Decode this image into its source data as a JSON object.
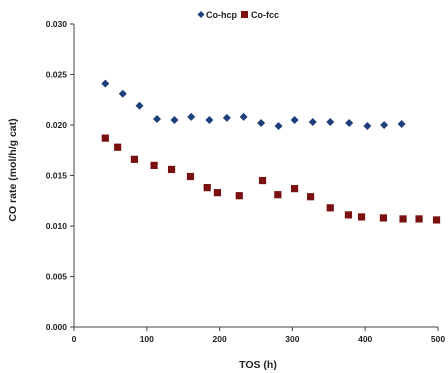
{
  "chart_data": {
    "type": "scatter",
    "title": "",
    "xlabel": "TOS (h)",
    "ylabel": "CO rate (mol/h/g cat)",
    "xlim": [
      0,
      500
    ],
    "ylim": [
      0.0,
      0.03
    ],
    "x_ticks": [
      0,
      100,
      200,
      300,
      400,
      500
    ],
    "x_tick_labels": [
      "0",
      "100",
      "200",
      "300",
      "400",
      "500"
    ],
    "y_ticks": [
      0.0,
      0.005,
      0.01,
      0.015,
      0.02,
      0.025,
      0.03
    ],
    "y_tick_labels": [
      "0.000",
      "0.005",
      "0.010",
      "0.015",
      "0.020",
      "0.025",
      "0.030"
    ],
    "grid": false,
    "legend_position": "top-center",
    "series": [
      {
        "name": "Co-hcp",
        "marker": "diamond",
        "color": "#1f3f7a",
        "points": [
          [
            43,
            0.0241
          ],
          [
            67,
            0.0231
          ],
          [
            90,
            0.0219
          ],
          [
            114,
            0.0206
          ],
          [
            138,
            0.0205
          ],
          [
            161,
            0.0208
          ],
          [
            186,
            0.0205
          ],
          [
            210,
            0.0207
          ],
          [
            233,
            0.0208
          ],
          [
            257,
            0.0202
          ],
          [
            281,
            0.0199
          ],
          [
            303,
            0.0205
          ],
          [
            328,
            0.0203
          ],
          [
            352,
            0.0203
          ],
          [
            378,
            0.0202
          ],
          [
            403,
            0.0199
          ],
          [
            426,
            0.02
          ],
          [
            450,
            0.0201
          ]
        ]
      },
      {
        "name": "Co-fcc",
        "marker": "square",
        "color": "#7a1010",
        "points": [
          [
            43,
            0.0187
          ],
          [
            60,
            0.0178
          ],
          [
            83,
            0.0166
          ],
          [
            110,
            0.016
          ],
          [
            134,
            0.0156
          ],
          [
            160,
            0.0149
          ],
          [
            183,
            0.0138
          ],
          [
            197,
            0.0133
          ],
          [
            227,
            0.013
          ],
          [
            259,
            0.0145
          ],
          [
            280,
            0.0131
          ],
          [
            303,
            0.0137
          ],
          [
            325,
            0.0129
          ],
          [
            352,
            0.0118
          ],
          [
            377,
            0.0111
          ],
          [
            395,
            0.0109
          ],
          [
            425,
            0.0108
          ],
          [
            452,
            0.0107
          ],
          [
            474,
            0.0107
          ],
          [
            498,
            0.0106
          ]
        ]
      }
    ]
  }
}
